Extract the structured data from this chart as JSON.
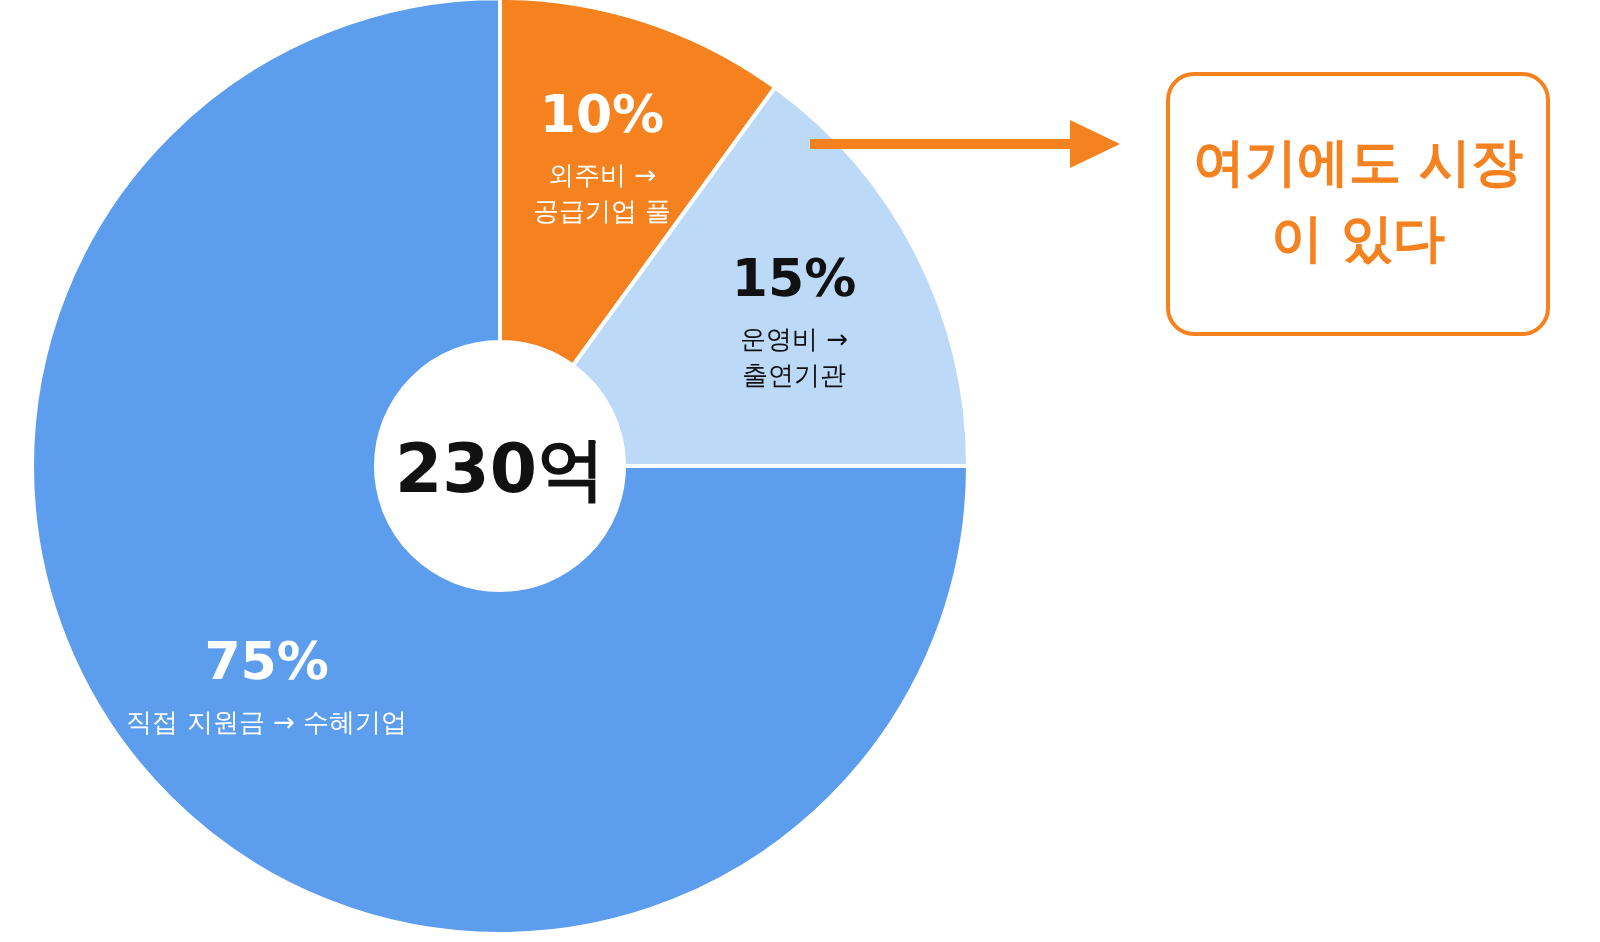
{
  "chart_data": {
    "type": "donut",
    "categories": [
      "외주비 → 공급기업 풀",
      "운영비 → 출연기관",
      "직접 지원금 → 수혜기업"
    ],
    "values": [
      10,
      15,
      75
    ],
    "value_labels": [
      "10%",
      "15%",
      "75%"
    ],
    "colors": [
      "#f5821f",
      "#bcdaf8",
      "#5c9ded"
    ],
    "annotations": [
      "230억",
      "여기에도 시장이 있다"
    ]
  }
}
